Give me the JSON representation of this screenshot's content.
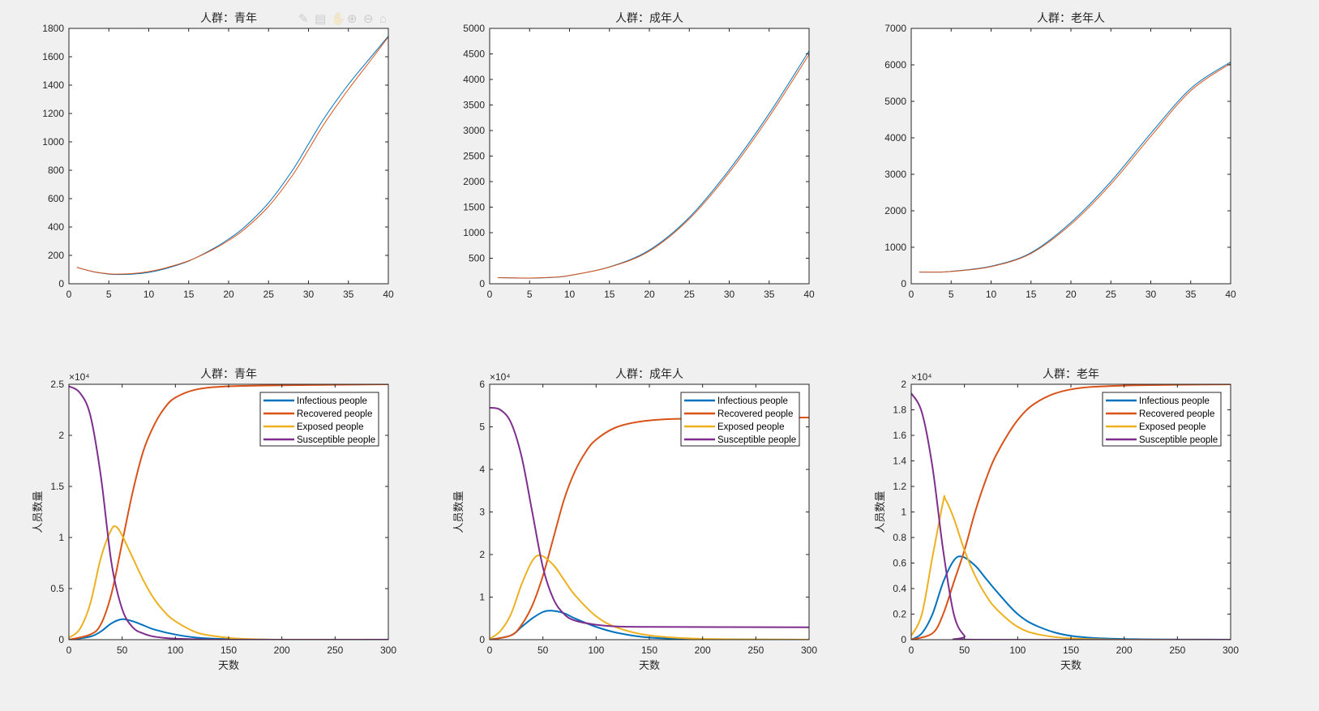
{
  "colors": {
    "blue": "#0072BD",
    "orange": "#D95319",
    "yellow": "#EDB120",
    "purple": "#7E2F8E",
    "axis": "#262626",
    "background": "#f0f0f0"
  },
  "toolbar_icons": [
    "brush-icon",
    "datatip-icon",
    "pan-icon",
    "zoom-in-icon",
    "zoom-out-icon",
    "home-icon"
  ],
  "chart_data": [
    {
      "type": "line",
      "title": "人群：青年",
      "xlabel": "",
      "ylabel": "",
      "exponent": "",
      "xlim": [
        0,
        40
      ],
      "ylim": [
        0,
        1800
      ],
      "xticks": [
        0,
        5,
        10,
        15,
        20,
        25,
        30,
        35,
        40
      ],
      "yticks": [
        0,
        200,
        400,
        600,
        800,
        1000,
        1200,
        1400,
        1600,
        1800
      ],
      "legend": [],
      "series": [
        {
          "color": "#0072BD",
          "width": 1,
          "x": [
            1,
            3,
            5,
            6,
            8,
            10,
            12,
            15,
            18,
            20,
            22,
            25,
            28,
            30,
            32,
            35,
            38,
            40
          ],
          "y": [
            115,
            85,
            68,
            65,
            68,
            80,
            105,
            160,
            245,
            315,
            400,
            570,
            800,
            985,
            1170,
            1405,
            1610,
            1745
          ]
        },
        {
          "color": "#D95319",
          "width": 1,
          "x": [
            1,
            3,
            5,
            6,
            8,
            10,
            12,
            15,
            18,
            20,
            22,
            25,
            28,
            30,
            32,
            35,
            38,
            40
          ],
          "y": [
            115,
            86,
            70,
            68,
            72,
            86,
            110,
            162,
            240,
            305,
            385,
            545,
            765,
            945,
            1130,
            1370,
            1590,
            1740
          ]
        }
      ]
    },
    {
      "type": "line",
      "title": "人群：成年人",
      "xlabel": "",
      "ylabel": "",
      "exponent": "",
      "xlim": [
        0,
        40
      ],
      "ylim": [
        0,
        5000
      ],
      "xticks": [
        0,
        5,
        10,
        15,
        20,
        25,
        30,
        35,
        40
      ],
      "yticks": [
        0,
        500,
        1000,
        1500,
        2000,
        2500,
        3000,
        3500,
        4000,
        4500,
        5000
      ],
      "legend": [],
      "series": [
        {
          "color": "#0072BD",
          "width": 1,
          "x": [
            1,
            5,
            8,
            10,
            15,
            20,
            25,
            30,
            35,
            40
          ],
          "y": [
            120,
            110,
            125,
            160,
            330,
            660,
            1300,
            2230,
            3330,
            4560
          ]
        },
        {
          "color": "#D95319",
          "width": 1,
          "x": [
            1,
            5,
            8,
            10,
            15,
            20,
            25,
            30,
            35,
            40
          ],
          "y": [
            120,
            112,
            128,
            162,
            325,
            640,
            1270,
            2180,
            3270,
            4490
          ]
        }
      ]
    },
    {
      "type": "line",
      "title": "人群：老年人",
      "xlabel": "",
      "ylabel": "",
      "exponent": "",
      "xlim": [
        0,
        40
      ],
      "ylim": [
        0,
        7000
      ],
      "xticks": [
        0,
        5,
        10,
        15,
        20,
        25,
        30,
        35,
        40
      ],
      "yticks": [
        0,
        1000,
        2000,
        3000,
        4000,
        5000,
        6000,
        7000
      ],
      "legend": [],
      "series": [
        {
          "color": "#0072BD",
          "width": 1,
          "x": [
            1,
            3,
            5,
            10,
            15,
            20,
            25,
            30,
            35,
            40
          ],
          "y": [
            320,
            320,
            340,
            480,
            850,
            1680,
            2800,
            4120,
            5350,
            6080
          ]
        },
        {
          "color": "#D95319",
          "width": 1,
          "x": [
            1,
            3,
            5,
            10,
            15,
            20,
            25,
            30,
            35,
            40
          ],
          "y": [
            320,
            320,
            335,
            470,
            830,
            1630,
            2730,
            4040,
            5290,
            6040
          ]
        }
      ]
    },
    {
      "type": "line",
      "title": "人群：青年",
      "xlabel": "天数",
      "ylabel": "人员数量",
      "exponent": "×10⁴",
      "xlim": [
        0,
        300
      ],
      "ylim": [
        0,
        2.5
      ],
      "xticks": [
        0,
        50,
        100,
        150,
        200,
        250,
        300
      ],
      "yticks": [
        0,
        0.5,
        1,
        1.5,
        2,
        2.5
      ],
      "legend": [
        "Infectious people",
        "Recovered people",
        "Exposed people",
        "Susceptible people"
      ],
      "series": [
        {
          "name": "Infectious people",
          "color": "#0072BD",
          "width": 2,
          "x": [
            0,
            20,
            30,
            40,
            50,
            60,
            70,
            80,
            100,
            120,
            150,
            200,
            300
          ],
          "y": [
            0,
            0.03,
            0.08,
            0.16,
            0.2,
            0.18,
            0.14,
            0.1,
            0.05,
            0.02,
            0.005,
            0,
            0
          ]
        },
        {
          "name": "Recovered people",
          "color": "#D95319",
          "width": 2,
          "x": [
            0,
            20,
            30,
            40,
            50,
            60,
            70,
            80,
            90,
            100,
            120,
            150,
            200,
            300
          ],
          "y": [
            0,
            0.05,
            0.15,
            0.45,
            0.95,
            1.45,
            1.85,
            2.1,
            2.27,
            2.37,
            2.45,
            2.48,
            2.49,
            2.5
          ]
        },
        {
          "name": "Exposed people",
          "color": "#EDB120",
          "width": 2,
          "x": [
            0,
            10,
            20,
            30,
            40,
            45,
            50,
            60,
            70,
            80,
            90,
            100,
            120,
            140,
            160,
            200,
            300
          ],
          "y": [
            0.02,
            0.1,
            0.35,
            0.8,
            1.08,
            1.1,
            1.02,
            0.8,
            0.58,
            0.4,
            0.27,
            0.18,
            0.07,
            0.03,
            0.01,
            0,
            0
          ]
        },
        {
          "name": "Susceptible people",
          "color": "#7E2F8E",
          "width": 2,
          "x": [
            0,
            10,
            20,
            30,
            40,
            50,
            60,
            70,
            80,
            100,
            150,
            300
          ],
          "y": [
            2.48,
            2.42,
            2.2,
            1.6,
            0.75,
            0.3,
            0.12,
            0.06,
            0.03,
            0.01,
            0,
            0
          ]
        }
      ]
    },
    {
      "type": "line",
      "title": "人群：成年人",
      "xlabel": "天数",
      "ylabel": "人员数量",
      "exponent": "×10⁴",
      "xlim": [
        0,
        300
      ],
      "ylim": [
        0,
        6
      ],
      "xticks": [
        0,
        50,
        100,
        150,
        200,
        250,
        300
      ],
      "yticks": [
        0,
        1,
        2,
        3,
        4,
        5,
        6
      ],
      "legend": [
        "Infectious people",
        "Recovered people",
        "Exposed people",
        "Susceptible people"
      ],
      "series": [
        {
          "name": "Infectious people",
          "color": "#0072BD",
          "width": 2,
          "x": [
            0,
            20,
            30,
            40,
            50,
            58,
            70,
            80,
            100,
            120,
            150,
            200,
            300
          ],
          "y": [
            0,
            0.1,
            0.3,
            0.5,
            0.65,
            0.68,
            0.62,
            0.5,
            0.3,
            0.16,
            0.05,
            0.01,
            0
          ]
        },
        {
          "name": "Recovered people",
          "color": "#D95319",
          "width": 2,
          "x": [
            0,
            20,
            30,
            40,
            50,
            60,
            70,
            80,
            90,
            100,
            120,
            150,
            200,
            300
          ],
          "y": [
            0,
            0.1,
            0.35,
            0.8,
            1.5,
            2.4,
            3.3,
            3.95,
            4.4,
            4.7,
            5.0,
            5.15,
            5.2,
            5.22
          ]
        },
        {
          "name": "Exposed people",
          "color": "#EDB120",
          "width": 2,
          "x": [
            0,
            10,
            20,
            30,
            40,
            48,
            60,
            70,
            80,
            100,
            120,
            150,
            200,
            300
          ],
          "y": [
            0.02,
            0.2,
            0.6,
            1.3,
            1.85,
            1.98,
            1.75,
            1.4,
            1.05,
            0.55,
            0.28,
            0.1,
            0.02,
            0
          ]
        },
        {
          "name": "Susceptible people",
          "color": "#7E2F8E",
          "width": 2,
          "x": [
            0,
            10,
            20,
            30,
            40,
            50,
            60,
            70,
            80,
            100,
            120,
            150,
            300
          ],
          "y": [
            5.45,
            5.4,
            5.1,
            4.3,
            3.0,
            1.7,
            0.95,
            0.6,
            0.45,
            0.35,
            0.31,
            0.3,
            0.29
          ]
        }
      ]
    },
    {
      "type": "line",
      "title": "人群：老年",
      "xlabel": "天数",
      "ylabel": "人员数量",
      "exponent": "×10⁴",
      "xlim": [
        0,
        300
      ],
      "ylim": [
        0,
        2
      ],
      "xticks": [
        0,
        50,
        100,
        150,
        200,
        250,
        300
      ],
      "yticks": [
        0,
        0.2,
        0.4,
        0.6,
        0.8,
        1,
        1.2,
        1.4,
        1.6,
        1.8,
        2
      ],
      "legend": [
        "Infectious people",
        "Recovered people",
        "Exposed people",
        "Susceptible people"
      ],
      "series": [
        {
          "name": "Infectious people",
          "color": "#0072BD",
          "width": 2,
          "x": [
            0,
            10,
            20,
            30,
            40,
            48,
            60,
            70,
            80,
            100,
            120,
            150,
            200,
            300
          ],
          "y": [
            0,
            0.05,
            0.2,
            0.45,
            0.62,
            0.65,
            0.58,
            0.48,
            0.38,
            0.2,
            0.1,
            0.03,
            0.005,
            0
          ]
        },
        {
          "name": "Recovered people",
          "color": "#D95319",
          "width": 2,
          "x": [
            0,
            20,
            30,
            40,
            50,
            60,
            70,
            80,
            100,
            120,
            150,
            200,
            300
          ],
          "y": [
            0,
            0.05,
            0.2,
            0.45,
            0.7,
            1.0,
            1.25,
            1.45,
            1.72,
            1.87,
            1.96,
            1.99,
            2.0
          ]
        },
        {
          "name": "Exposed people",
          "color": "#EDB120",
          "width": 2,
          "x": [
            0,
            10,
            20,
            30,
            32,
            40,
            50,
            60,
            70,
            80,
            100,
            120,
            150,
            200,
            300
          ],
          "y": [
            0.03,
            0.2,
            0.65,
            1.08,
            1.1,
            0.95,
            0.7,
            0.5,
            0.35,
            0.24,
            0.1,
            0.04,
            0.01,
            0,
            0
          ]
        },
        {
          "name": "Susceptible people",
          "color": "#7E2F8E",
          "width": 2,
          "x": [
            0,
            10,
            20,
            30,
            40,
            50,
            60,
            300
          ],
          "y": [
            1.93,
            1.78,
            1.35,
            0.7,
            0.2,
            0.03,
            0,
            0
          ]
        }
      ]
    }
  ]
}
